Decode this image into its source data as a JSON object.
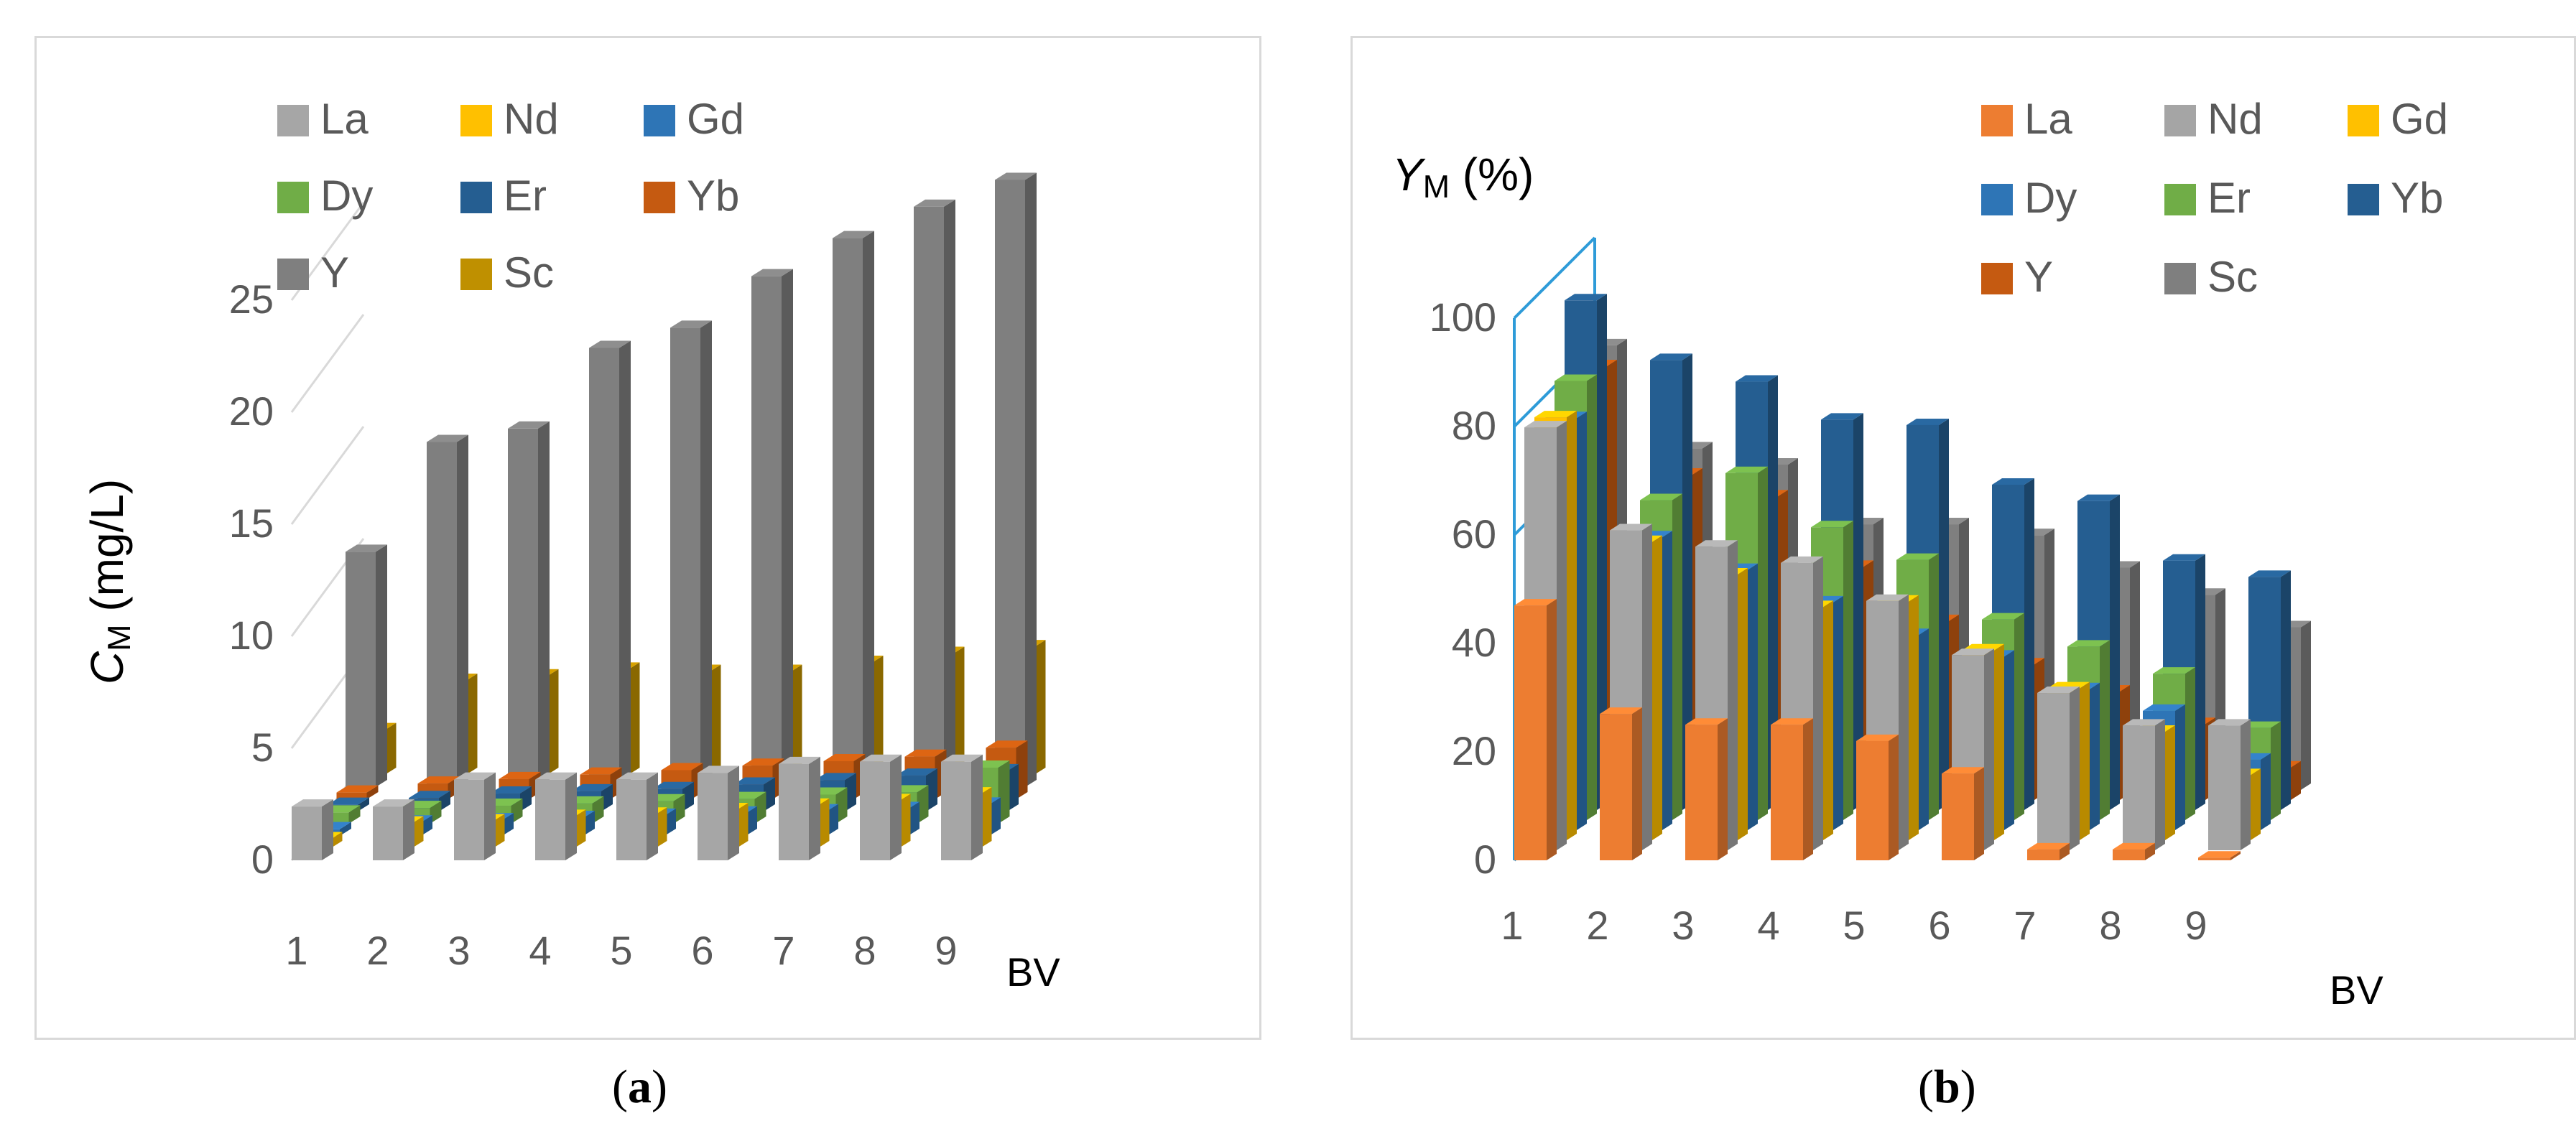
{
  "charts": [
    {
      "id": "a",
      "caption": "a",
      "chart_data": {
        "type": "bar3d",
        "categories": [
          "1",
          "2",
          "3",
          "4",
          "5",
          "6",
          "7",
          "8",
          "9"
        ],
        "xlabel": "BV",
        "ylabel": "C",
        "ylabel_sub": "M",
        "ylabel_unit": " (mg/L)",
        "ylim": [
          0,
          25
        ],
        "yticks": [
          "0",
          "5",
          "10",
          "15",
          "20",
          "25"
        ],
        "series": [
          {
            "name": "La",
            "color": "#a6a6a6",
            "values": [
              2.4,
              2.4,
              3.6,
              3.6,
              3.6,
              3.9,
              4.3,
              4.4,
              4.4
            ]
          },
          {
            "name": "Nd",
            "color": "#ffc000",
            "values": [
              0.4,
              1.1,
              1.2,
              1.4,
              1.5,
              1.7,
              1.9,
              2.1,
              2.4
            ]
          },
          {
            "name": "Gd",
            "color": "#2e75b6",
            "values": [
              0.3,
              0.6,
              0.7,
              0.8,
              0.9,
              1.0,
              1.1,
              1.2,
              1.4
            ]
          },
          {
            "name": "Dy",
            "color": "#70ad47",
            "values": [
              0.5,
              0.7,
              0.8,
              0.9,
              1.0,
              1.1,
              1.3,
              1.4,
              2.5
            ]
          },
          {
            "name": "Er",
            "color": "#255e91",
            "values": [
              0.3,
              0.6,
              0.8,
              0.9,
              1.0,
              1.2,
              1.4,
              1.6,
              1.8
            ]
          },
          {
            "name": "Yb",
            "color": "#c55a11",
            "values": [
              0.3,
              0.7,
              0.9,
              1.1,
              1.3,
              1.5,
              1.7,
              1.9,
              2.3
            ]
          },
          {
            "name": "Y",
            "color": "#7f7f7f",
            "values": [
              10.5,
              15.4,
              16.0,
              19.6,
              20.5,
              22.8,
              24.5,
              25.9,
              27.1
            ]
          },
          {
            "name": "Sc",
            "color": "#bf9000",
            "values": [
              2.0,
              4.2,
              4.4,
              4.7,
              4.6,
              4.6,
              5.0,
              5.4,
              5.7
            ]
          }
        ]
      }
    },
    {
      "id": "b",
      "caption": "b",
      "chart_data": {
        "type": "bar3d",
        "categories": [
          "1",
          "2",
          "3",
          "4",
          "5",
          "6",
          "7",
          "8",
          "9"
        ],
        "xlabel": "BV",
        "ylabel": "Y",
        "ylabel_sub": "M",
        "ylabel_unit": " (%)",
        "ylim": [
          0,
          100
        ],
        "yticks": [
          "0",
          "20",
          "40",
          "60",
          "80",
          "100"
        ],
        "series": [
          {
            "name": "La",
            "color": "#ed7d31",
            "values": [
              47,
              27,
              25,
              25,
              22,
              16,
              2,
              2,
              0.5
            ]
          },
          {
            "name": "Nd",
            "color": "#a5a5a5",
            "values": [
              78,
              59,
              56,
              53,
              46,
              36,
              29,
              23,
              23
            ]
          },
          {
            "name": "Gd",
            "color": "#ffc000",
            "values": [
              78,
              55,
              49,
              43,
              44,
              35,
              28,
              20,
              12
            ]
          },
          {
            "name": "Dy",
            "color": "#2e75b6",
            "values": [
              76,
              54,
              48,
              42,
              36,
              32,
              26,
              22,
              13
            ]
          },
          {
            "name": "Er",
            "color": "#70ad47",
            "values": [
              81,
              59,
              64,
              54,
              48,
              37,
              32,
              27,
              17
            ]
          },
          {
            "name": "Yb",
            "color": "#255e91",
            "values": [
              94,
              83,
              79,
              72,
              71,
              60,
              57,
              46,
              43
            ]
          },
          {
            "name": "Y",
            "color": "#c55a11",
            "values": [
              80,
              60,
              56,
              43,
              33,
              25,
              20,
              14,
              6
            ]
          },
          {
            "name": "Sc",
            "color": "#7f7f7f",
            "values": [
              82,
              63,
              60,
              49,
              49,
              47,
              41,
              36,
              30
            ]
          }
        ]
      }
    }
  ]
}
